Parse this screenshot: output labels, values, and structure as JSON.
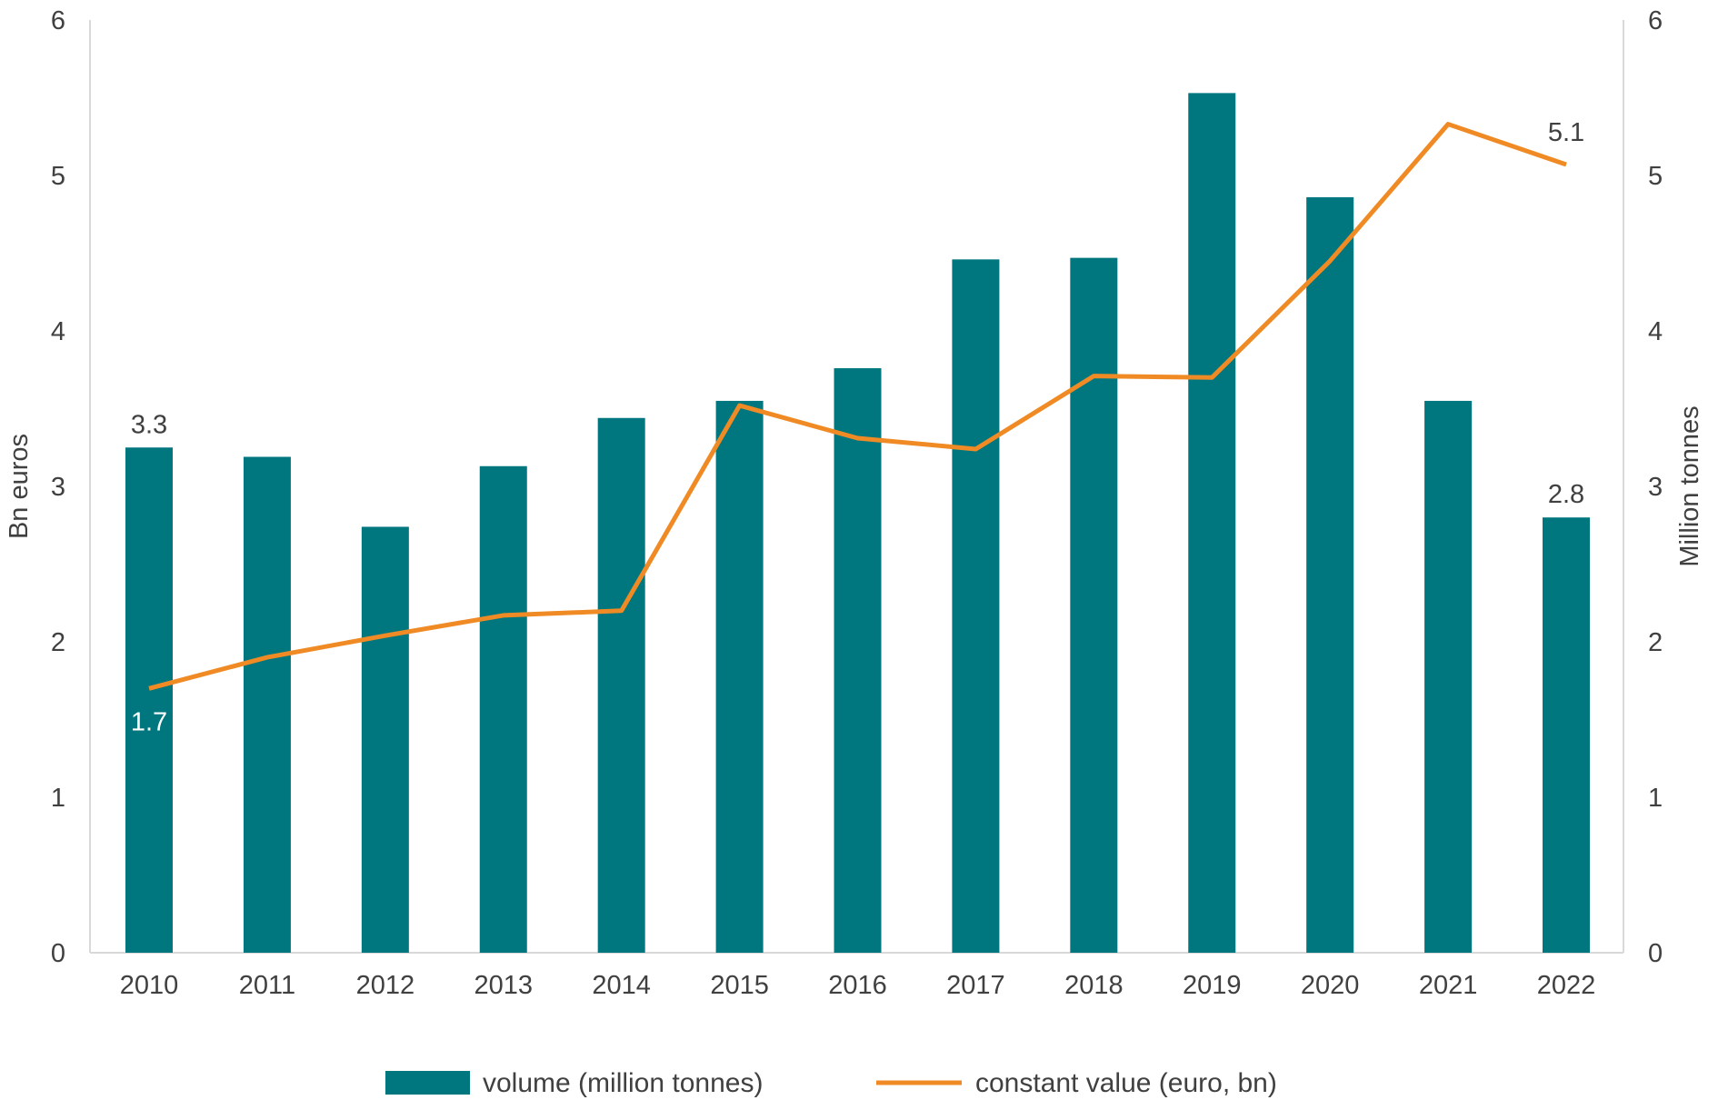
{
  "chart_data": {
    "type": "bar+line",
    "categories": [
      "2010",
      "2011",
      "2012",
      "2013",
      "2014",
      "2015",
      "2016",
      "2017",
      "2018",
      "2019",
      "2020",
      "2021",
      "2022"
    ],
    "series": [
      {
        "name": "volume (million tonnes)",
        "type": "bar",
        "axis": "right",
        "color": "#00777E",
        "values": [
          3.25,
          3.19,
          2.74,
          3.13,
          3.44,
          3.55,
          3.76,
          4.46,
          4.47,
          5.53,
          4.86,
          3.55,
          2.8
        ]
      },
      {
        "name": "constant value (euro, bn)",
        "type": "line",
        "axis": "left",
        "color": "#F08A24",
        "values": [
          1.7,
          1.9,
          2.04,
          2.17,
          2.2,
          3.52,
          3.31,
          3.24,
          3.71,
          3.7,
          4.45,
          5.33,
          5.07
        ]
      }
    ],
    "data_labels": [
      {
        "series": 0,
        "index": 0,
        "text": "3.3"
      },
      {
        "series": 0,
        "index": 12,
        "text": "2.8"
      },
      {
        "series": 1,
        "index": 0,
        "text": "1.7"
      },
      {
        "series": 1,
        "index": 12,
        "text": "5.1"
      }
    ],
    "ylabel": "Bn euros",
    "y2label": "Million tonnes",
    "ylim": [
      0,
      6
    ],
    "y2lim": [
      0,
      6
    ],
    "yticks": [
      "0",
      "1",
      "2",
      "3",
      "4",
      "5",
      "6"
    ],
    "y2ticks": [
      "0",
      "1",
      "2",
      "3",
      "4",
      "5",
      "6"
    ],
    "grid": false,
    "legend": "bottom-center"
  }
}
